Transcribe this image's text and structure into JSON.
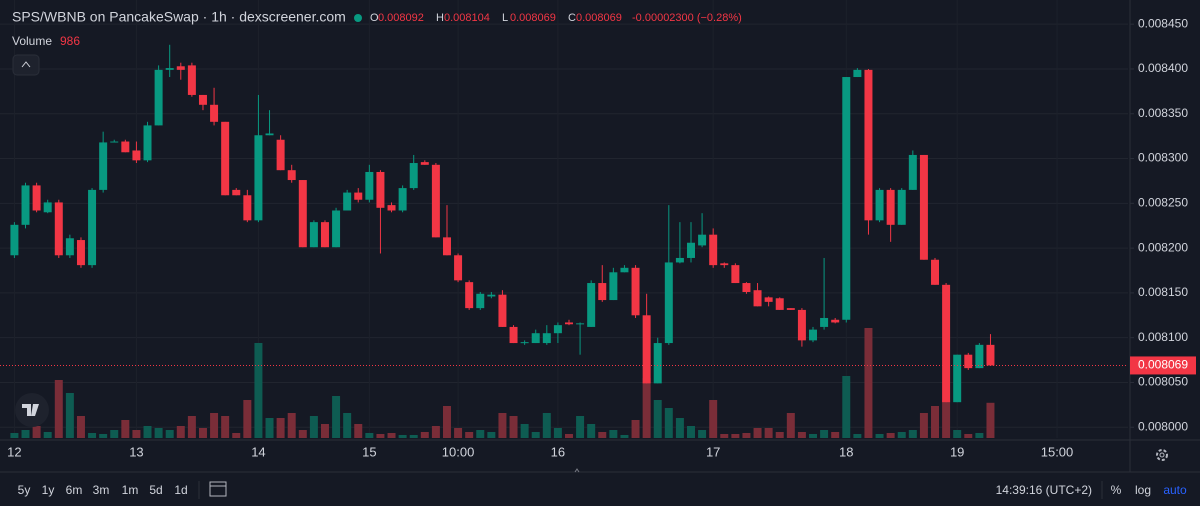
{
  "chart_data": {
    "type": "candlestick",
    "title": "SPS/WBNB on PancakeSwap · 1h · dexscreener.com",
    "ohlc_keys": [
      "O",
      "H",
      "L",
      "C"
    ],
    "change": "-0.00002300 (−0.28%)",
    "up_color": "#089981",
    "down_color": "#f23645",
    "open": [
      0.008192,
      0.008226,
      0.00827,
      0.00824,
      0.008251,
      0.008192,
      0.008209,
      0.008181,
      0.008265,
      0.008318,
      0.008319,
      0.008309,
      0.008298,
      0.008337,
      0.008399,
      0.008403,
      0.008404,
      0.008371,
      0.00836,
      0.008341,
      0.008265,
      0.008259,
      0.008231,
      0.008326,
      0.008321,
      0.008287,
      0.008276,
      0.008201,
      0.008229,
      0.008201,
      0.008242,
      0.008262,
      0.008254,
      0.008285,
      0.008248,
      0.008242,
      0.008267,
      0.008296,
      0.008293,
      0.008212,
      0.008192,
      0.008162,
      0.008133,
      0.008146,
      0.008148,
      0.008112,
      0.008094,
      0.008094,
      0.008094,
      0.008105,
      0.008117,
      0.008115,
      0.008112,
      0.008161,
      0.008142,
      0.008173,
      0.008178,
      0.008125,
      0.008049,
      0.008094,
      0.008184,
      0.008189,
      0.008203,
      0.008215,
      0.008183,
      0.008181,
      0.008161,
      0.008153,
      0.008145,
      0.008144,
      0.008133,
      0.008131,
      0.008097,
      0.008112,
      0.00812,
      0.00812,
      0.008391,
      0.008399,
      0.008231,
      0.008265,
      0.008226,
      0.008265,
      0.008304,
      0.008187,
      0.008159,
      0.008028,
      0.008081,
      0.008066,
      0.008092
    ],
    "high": [
      0.008229,
      0.008273,
      0.008273,
      0.008254,
      0.008254,
      0.008215,
      0.008212,
      0.008267,
      0.00833,
      0.008321,
      0.008321,
      0.008319,
      0.008341,
      0.008404,
      0.008427,
      0.008407,
      0.008407,
      0.008371,
      0.008379,
      0.008341,
      0.008267,
      0.008265,
      0.008371,
      0.008354,
      0.008326,
      0.008293,
      0.008276,
      0.008231,
      0.008231,
      0.008245,
      0.008265,
      0.008267,
      0.008293,
      0.008287,
      0.008251,
      0.00827,
      0.008304,
      0.008298,
      0.008295,
      0.008248,
      0.008194,
      0.008164,
      0.008151,
      0.008151,
      0.008153,
      0.008114,
      0.008097,
      0.008109,
      0.008114,
      0.008117,
      0.00812,
      0.008117,
      0.008164,
      0.008181,
      0.008178,
      0.008181,
      0.008181,
      0.008149,
      0.0081,
      0.008248,
      0.008229,
      0.008229,
      0.008239,
      0.008222,
      0.008184,
      0.008183,
      0.008162,
      0.008161,
      0.008146,
      0.008145,
      0.008133,
      0.008133,
      0.008112,
      0.008189,
      0.008122,
      0.008391,
      0.008401,
      0.0084,
      0.008267,
      0.008267,
      0.008267,
      0.008309,
      0.008304,
      0.008189,
      0.008161,
      0.008081,
      0.008083,
      0.008094,
      0.008104
    ],
    "low": [
      0.008189,
      0.008222,
      0.00824,
      0.008239,
      0.008189,
      0.008189,
      0.008178,
      0.008178,
      0.008262,
      0.008318,
      0.008307,
      0.008295,
      0.008296,
      0.008337,
      0.008391,
      0.008388,
      0.008369,
      0.008354,
      0.008337,
      0.008259,
      0.008259,
      0.008229,
      0.008229,
      0.008326,
      0.008287,
      0.008273,
      0.008201,
      0.008201,
      0.008201,
      0.008201,
      0.008242,
      0.008251,
      0.008251,
      0.008194,
      0.00824,
      0.00824,
      0.008265,
      0.008293,
      0.008212,
      0.008192,
      0.008162,
      0.008131,
      0.008131,
      0.008144,
      0.008112,
      0.008094,
      0.008092,
      0.008094,
      0.008092,
      0.008094,
      0.008114,
      0.008081,
      0.008112,
      0.00814,
      0.008142,
      0.008173,
      0.008122,
      0.008049,
      0.008049,
      0.008092,
      0.008183,
      0.008184,
      0.008201,
      0.008178,
      0.008178,
      0.008161,
      0.008149,
      0.008135,
      0.008135,
      0.008131,
      0.008131,
      0.00809,
      0.008095,
      0.008109,
      0.008116,
      0.008117,
      0.008391,
      0.008215,
      0.008229,
      0.008207,
      0.008226,
      0.008265,
      0.008187,
      0.008159,
      0.008028,
      0.008028,
      0.008064,
      0.008066,
      0.008069
    ],
    "close": [
      0.008226,
      0.00827,
      0.008242,
      0.008251,
      0.008192,
      0.008211,
      0.008181,
      0.008265,
      0.008318,
      0.008319,
      0.008307,
      0.008298,
      0.008337,
      0.008399,
      0.008401,
      0.008399,
      0.008371,
      0.00836,
      0.008341,
      0.008259,
      0.008259,
      0.008231,
      0.008326,
      0.008328,
      0.008287,
      0.008276,
      0.008201,
      0.008229,
      0.008201,
      0.008242,
      0.008262,
      0.008254,
      0.008285,
      0.008245,
      0.008242,
      0.008267,
      0.008295,
      0.008293,
      0.008212,
      0.008192,
      0.008164,
      0.008133,
      0.008149,
      0.008148,
      0.008112,
      0.008094,
      0.008095,
      0.008105,
      0.008105,
      0.008114,
      0.008115,
      0.008116,
      0.008161,
      0.008142,
      0.008173,
      0.008178,
      0.008125,
      0.008049,
      0.008094,
      0.008184,
      0.008189,
      0.008206,
      0.008215,
      0.008181,
      0.008181,
      0.008161,
      0.008151,
      0.008135,
      0.00814,
      0.008131,
      0.008131,
      0.008097,
      0.008109,
      0.008122,
      0.008117,
      0.008391,
      0.008399,
      0.008231,
      0.008265,
      0.008226,
      0.008265,
      0.008304,
      0.008187,
      0.008159,
      0.008028,
      0.008081,
      0.008066,
      0.008092,
      0.008069
    ],
    "volume": {
      "name": "Volume",
      "up_color": "#0e5c52",
      "down_color": "#7a2d38",
      "values": [
        140,
        224,
        336,
        168,
        1624,
        1260,
        616,
        140,
        112,
        224,
        504,
        224,
        336,
        280,
        224,
        336,
        616,
        280,
        700,
        616,
        140,
        1064,
        2660,
        560,
        560,
        700,
        224,
        616,
        392,
        1176,
        700,
        392,
        140,
        112,
        140,
        84,
        84,
        168,
        336,
        896,
        280,
        168,
        224,
        168,
        700,
        616,
        392,
        168,
        700,
        280,
        112,
        616,
        392,
        168,
        224,
        84,
        504,
        1680,
        1064,
        840,
        560,
        336,
        224,
        1064,
        112,
        112,
        140,
        280,
        280,
        168,
        700,
        168,
        112,
        224,
        168,
        1736,
        112,
        3080,
        112,
        140,
        168,
        224,
        700,
        896,
        1064,
        224,
        112,
        140,
        986
      ]
    },
    "xlim": [
      -1.3,
      100.4
    ],
    "xticks": [
      {
        "value": 0,
        "label": "12"
      },
      {
        "value": 11,
        "label": "13"
      },
      {
        "value": 22,
        "label": "14"
      },
      {
        "value": 32,
        "label": "15"
      },
      {
        "value": 40,
        "label": "10:00"
      },
      {
        "value": 49,
        "label": "16"
      },
      {
        "value": 63,
        "label": "17"
      },
      {
        "value": 75,
        "label": "18"
      },
      {
        "value": 85,
        "label": "19"
      },
      {
        "value": 94,
        "label": "15:00"
      }
    ],
    "ylim": [
      0.007988,
      0.008477
    ],
    "yticks": [
      {
        "value": 0.008,
        "label": "0.008000"
      },
      {
        "value": 0.00805,
        "label": "0.008050"
      },
      {
        "value": 0.0081,
        "label": "0.008100"
      },
      {
        "value": 0.00815,
        "label": "0.008150"
      },
      {
        "value": 0.0082,
        "label": "0.008200"
      },
      {
        "value": 0.00825,
        "label": "0.008250"
      },
      {
        "value": 0.0083,
        "label": "0.008300"
      },
      {
        "value": 0.00835,
        "label": "0.008350"
      },
      {
        "value": 0.0084,
        "label": "0.008400"
      },
      {
        "value": 0.00845,
        "label": "0.008450"
      }
    ],
    "grid": true,
    "log_scale": false
  },
  "toolbar": {
    "ranges": [
      "5y",
      "1y",
      "6m",
      "3m",
      "1m",
      "5d",
      "1d"
    ],
    "time": "14:39:16 (UTC+2)",
    "percent": "%",
    "log": "log",
    "auto": "auto"
  }
}
